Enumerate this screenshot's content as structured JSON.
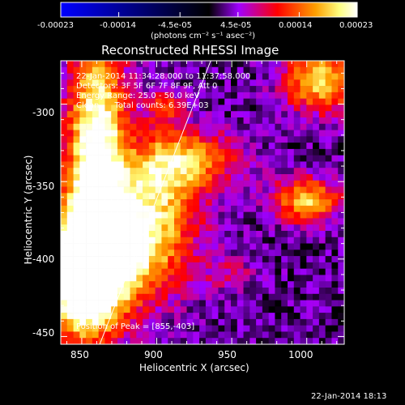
{
  "chart_data": {
    "type": "heatmap",
    "title": "Reconstructed RHESSI Image",
    "xlabel": "Heliocentric X (arcsec)",
    "ylabel": "Heliocentric Y (arcsec)",
    "xlim": [
      836,
      1025
    ],
    "ylim": [
      -455,
      -272
    ],
    "xticks": [
      850,
      900,
      950,
      1000
    ],
    "yticks": [
      -300,
      -350,
      -400,
      -450
    ],
    "colorbar": {
      "range": [
        -0.00023,
        0.00023
      ],
      "tick_labels": [
        "-0.00023",
        "-0.00014",
        "-4.5e-05",
        "4.5e-05",
        "0.00014",
        "0.00023"
      ],
      "unit_label": "(photons cm⁻² s⁻¹ asec⁻²)",
      "colors": [
        "#0000ff",
        "#000000",
        "#a000ff",
        "#ff0000",
        "#ffa000",
        "#ffff80",
        "#ffffff"
      ]
    },
    "annotations": {
      "time_range": "22-Jan-2014 11:34:28.000 to 11:37:58.000",
      "detectors": "Detectors: 3F 5F 6F 7F 8F 9F, Att 0",
      "energy": "Energy Range: 25.0 - 50.0 keV",
      "counts": "Clean      Total counts: 6.39E+03",
      "peak": "Position of Peak = [855,-403]"
    },
    "limb_line": [
      [
        862,
        -455
      ],
      [
        936,
        -272
      ]
    ],
    "bright_regions": [
      {
        "x": 860,
        "y": -330,
        "sx": 14,
        "sy": 55,
        "amp": 1.0
      },
      {
        "x": 875,
        "y": -390,
        "sx": 30,
        "sy": 26,
        "amp": 1.0
      },
      {
        "x": 850,
        "y": -420,
        "sx": 18,
        "sy": 25,
        "amp": 0.9
      },
      {
        "x": 905,
        "y": -345,
        "sx": 18,
        "sy": 22,
        "amp": 0.55
      },
      {
        "x": 930,
        "y": -335,
        "sx": 22,
        "sy": 12,
        "amp": 0.45
      },
      {
        "x": 905,
        "y": -300,
        "sx": 8,
        "sy": 8,
        "amp": 0.35
      },
      {
        "x": 1010,
        "y": -285,
        "sx": 18,
        "sy": 14,
        "amp": 0.75
      },
      {
        "x": 1000,
        "y": -362,
        "sx": 16,
        "sy": 10,
        "amp": 0.7
      },
      {
        "x": 950,
        "y": -410,
        "sx": 12,
        "sy": 8,
        "amp": 0.2
      }
    ],
    "footer_date": "22-Jan-2014 18:13"
  }
}
